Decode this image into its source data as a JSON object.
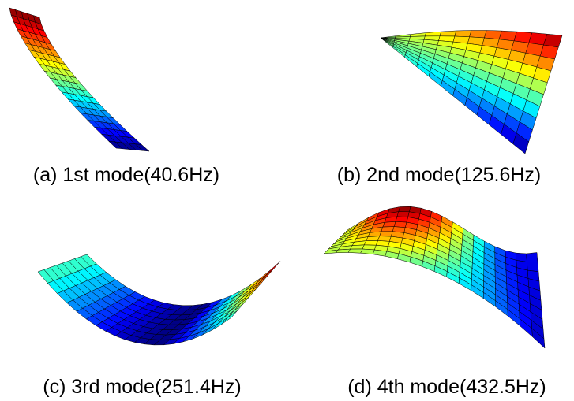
{
  "figure": {
    "panels": [
      {
        "caption": "(a) 1st mode(40.6Hz)"
      },
      {
        "caption": "(b) 2nd mode(125.6Hz)"
      },
      {
        "caption": "(c) 3rd mode(251.4Hz)"
      },
      {
        "caption": "(d) 4th mode(432.5Hz)"
      }
    ]
  }
}
